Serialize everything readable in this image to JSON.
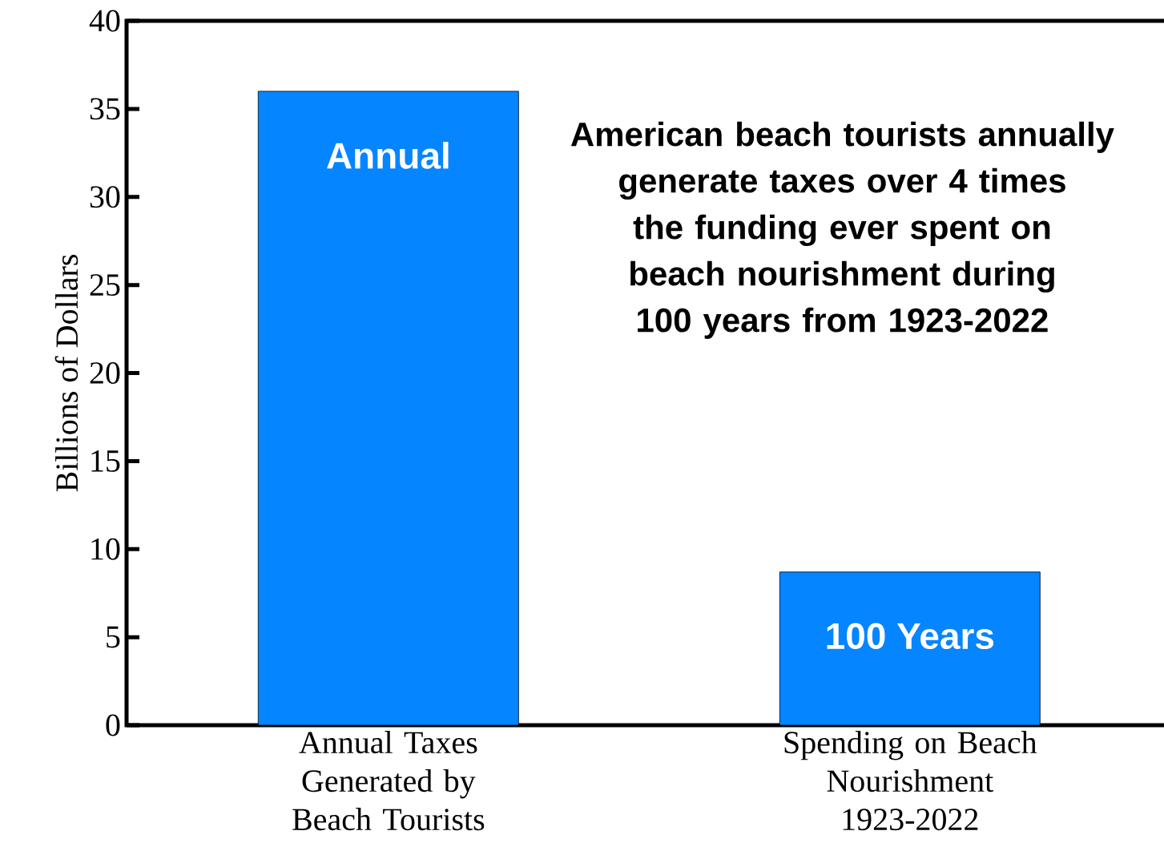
{
  "chart_data": {
    "type": "bar",
    "ylabel": "Billions of Dollars",
    "categories": [
      "Annual Taxes Generated by Beach Tourists",
      "Spending on Beach Nourishment 1923-2022"
    ],
    "values": [
      36,
      8.7
    ],
    "color": "#0585ff",
    "ylim": [
      0,
      40
    ],
    "yticks": [
      0,
      5,
      10,
      15,
      20,
      25,
      30,
      35,
      40
    ],
    "annotations": [
      "Annual",
      "100 Years",
      "American beach tourists annually generate taxes over 4 times the funding ever spent on beach nourishment during 100 years from 1923-2022"
    ]
  }
}
